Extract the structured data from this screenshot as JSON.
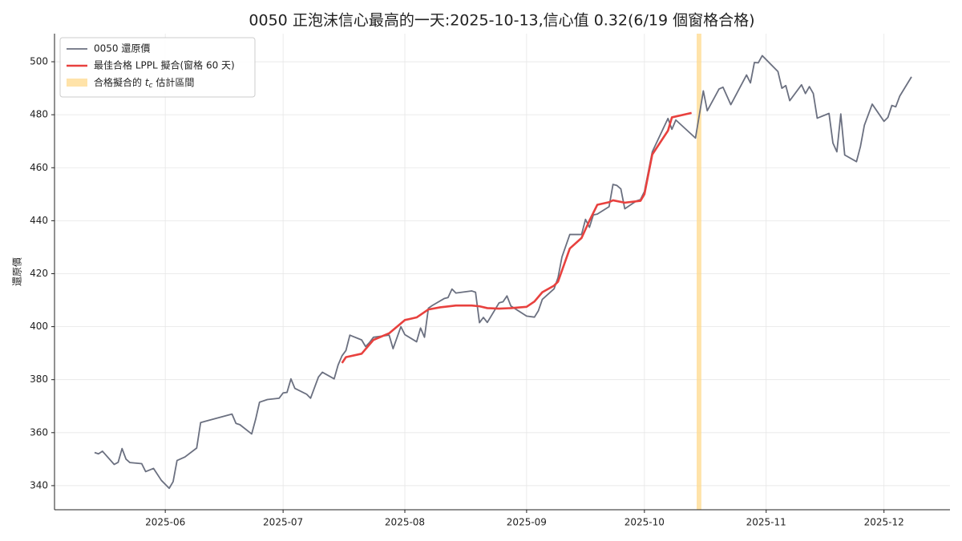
{
  "chart_data": {
    "type": "line",
    "title": "0050 正泡沫信心最高的一天:2025-10-13,信心值 0.32(6/19 個窗格合格)",
    "ylabel": "還原價",
    "xlim": [
      20211.8,
      20439.8
    ],
    "ylim": [
      330.9,
      510.6
    ],
    "xticks": [
      {
        "value": 20240,
        "label": "2025-06"
      },
      {
        "value": 20270,
        "label": "2025-07"
      },
      {
        "value": 20301,
        "label": "2025-08"
      },
      {
        "value": 20332,
        "label": "2025-09"
      },
      {
        "value": 20362,
        "label": "2025-10"
      },
      {
        "value": 20393,
        "label": "2025-11"
      },
      {
        "value": 20423,
        "label": "2025-12"
      }
    ],
    "yticks": [
      340,
      360,
      380,
      400,
      420,
      440,
      460,
      480,
      500
    ],
    "grid": true,
    "legend": "upper left",
    "series": [
      {
        "name": "0050 還原價",
        "color": "#6b7080",
        "x": [
          20222,
          20223,
          20224,
          20227,
          20228,
          20229,
          20230,
          20231,
          20234,
          20235,
          20237,
          20239,
          20241,
          20242,
          20243,
          20245,
          20248,
          20249,
          20257,
          20258,
          20259,
          20262,
          20263,
          20264,
          20266,
          20269,
          20270,
          20271,
          20272,
          20273,
          20276,
          20277,
          20279,
          20280,
          20283,
          20284,
          20285,
          20286,
          20287,
          20290,
          20291,
          20292,
          20293,
          20297,
          20298,
          20300,
          20301,
          20304,
          20305,
          20306,
          20307,
          20308,
          20311,
          20312,
          20313,
          20314,
          20318,
          20319,
          20320,
          20321,
          20322,
          20325,
          20326,
          20327,
          20328,
          20332,
          20334,
          20335,
          20336,
          20339,
          20340,
          20341,
          20343,
          20346,
          20347,
          20348,
          20349,
          20350,
          20353,
          20354,
          20355,
          20356,
          20357,
          20360,
          20361,
          20362,
          20364,
          20368,
          20369,
          20370,
          20375,
          20377,
          20378,
          20381,
          20382,
          20384,
          20388,
          20389,
          20390,
          20391,
          20392,
          20396,
          20397,
          20398,
          20399,
          20402,
          20403,
          20404,
          20405,
          20406,
          20409,
          20410,
          20411,
          20412,
          20413,
          20416,
          20417,
          20418,
          20420,
          20423,
          20424,
          20425,
          20426,
          20427,
          20430
        ],
        "values": [
          352.5,
          352,
          353,
          348,
          348.8,
          354,
          350,
          348.7,
          348.3,
          345.3,
          346.5,
          342,
          339,
          341.5,
          349.5,
          350.8,
          354.2,
          363.8,
          367,
          363.5,
          363,
          359.5,
          365,
          371.5,
          372.5,
          373,
          375,
          375.2,
          380.3,
          376.7,
          374.5,
          373,
          381,
          382.8,
          380.3,
          385.5,
          389,
          391,
          396.8,
          395,
          392.5,
          394,
          396,
          396.8,
          391.7,
          400,
          397,
          394.3,
          399.5,
          396,
          407,
          408,
          410.6,
          411,
          414.2,
          412.7,
          413.5,
          413,
          401.5,
          403.5,
          401.6,
          409,
          409.4,
          411.6,
          407.8,
          404,
          403.6,
          406,
          410.3,
          414.3,
          418.5,
          426.3,
          434.8,
          434.8,
          440.5,
          437.5,
          442.2,
          442.5,
          445.3,
          453.7,
          453.3,
          452,
          444.5,
          447.5,
          448,
          451,
          466,
          478.6,
          474.5,
          478,
          471.2,
          489,
          481.5,
          489.7,
          490.4,
          483.8,
          495,
          492,
          499.7,
          499.6,
          502.3,
          496.3,
          490,
          491,
          485.3,
          491.3,
          488,
          490.6,
          488,
          478.7,
          480.5,
          469.3,
          466,
          480.3,
          464.8,
          462.3,
          468,
          476,
          484,
          477.5,
          479,
          483.5,
          483,
          487,
          494.3
        ]
      },
      {
        "name": "最佳合格 LPPL 擬合(窗格 60 天)",
        "color": "#e8413e",
        "x": [
          20285,
          20286,
          20290,
          20293,
          20297,
          20301,
          20304,
          20307,
          20310,
          20314,
          20318,
          20320,
          20322,
          20325,
          20328,
          20332,
          20334,
          20336,
          20339,
          20340,
          20343,
          20346,
          20348,
          20350,
          20353,
          20354,
          20357,
          20361,
          20362,
          20364,
          20368,
          20369,
          20374
        ],
        "values": [
          386.3,
          388.5,
          389.8,
          395,
          397.5,
          402.5,
          403.5,
          406.5,
          407.3,
          408,
          408,
          407.7,
          407,
          406.8,
          407,
          407.5,
          409.5,
          413,
          415.5,
          417,
          429.5,
          433.5,
          440,
          446,
          447,
          447.7,
          446.8,
          447.5,
          450,
          465,
          474,
          479,
          480.7
        ]
      }
    ],
    "span": {
      "name": [
        "合格擬合的 ",
        "t",
        "c",
        " 估計區間"
      ],
      "color": "#ffd98c",
      "x": [
        20375.3,
        20376.5
      ]
    }
  }
}
